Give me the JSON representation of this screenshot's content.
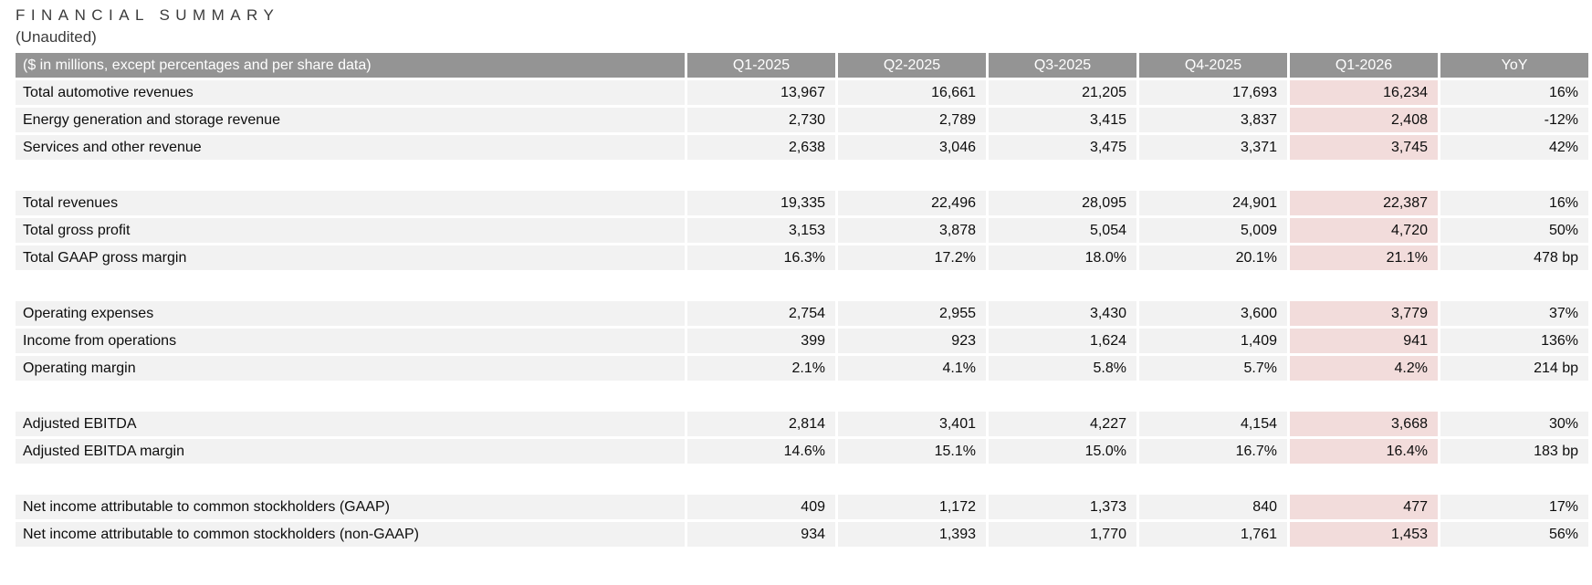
{
  "page": {
    "title": "FINANCIAL SUMMARY",
    "subtitle": "(Unaudited)"
  },
  "table": {
    "corner_label": "($ in millions, except percentages and per share data)",
    "columns": [
      "Q1-2025",
      "Q2-2025",
      "Q3-2025",
      "Q4-2025",
      "Q1-2026",
      "YoY"
    ],
    "highlight_column_index": 4,
    "highlight_column": "Q1-2026",
    "sections": [
      {
        "rows": [
          {
            "label": "Total automotive revenues",
            "values": [
              "13,967",
              "16,661",
              "21,205",
              "17,693",
              "16,234",
              "16%"
            ]
          },
          {
            "label": "Energy generation and storage revenue",
            "values": [
              "2,730",
              "2,789",
              "3,415",
              "3,837",
              "2,408",
              "-12%"
            ]
          },
          {
            "label": "Services and other revenue",
            "values": [
              "2,638",
              "3,046",
              "3,475",
              "3,371",
              "3,745",
              "42%"
            ]
          }
        ]
      },
      {
        "rows": [
          {
            "label": "Total revenues",
            "values": [
              "19,335",
              "22,496",
              "28,095",
              "24,901",
              "22,387",
              "16%"
            ]
          },
          {
            "label": "Total gross profit",
            "values": [
              "3,153",
              "3,878",
              "5,054",
              "5,009",
              "4,720",
              "50%"
            ]
          },
          {
            "label": "Total GAAP gross margin",
            "values": [
              "16.3%",
              "17.2%",
              "18.0%",
              "20.1%",
              "21.1%",
              "478 bp"
            ]
          }
        ]
      },
      {
        "rows": [
          {
            "label": "Operating expenses",
            "values": [
              "2,754",
              "2,955",
              "3,430",
              "3,600",
              "3,779",
              "37%"
            ]
          },
          {
            "label": "Income from operations",
            "values": [
              "399",
              "923",
              "1,624",
              "1,409",
              "941",
              "136%"
            ]
          },
          {
            "label": "Operating margin",
            "values": [
              "2.1%",
              "4.1%",
              "5.8%",
              "5.7%",
              "4.2%",
              "214 bp"
            ]
          }
        ]
      },
      {
        "rows": [
          {
            "label": "Adjusted EBITDA",
            "values": [
              "2,814",
              "3,401",
              "4,227",
              "4,154",
              "3,668",
              "30%"
            ]
          },
          {
            "label": "Adjusted EBITDA margin",
            "values": [
              "14.6%",
              "15.1%",
              "15.0%",
              "16.7%",
              "16.4%",
              "183 bp"
            ]
          }
        ]
      },
      {
        "rows": [
          {
            "label": "Net income attributable to common stockholders (GAAP)",
            "values": [
              "409",
              "1,172",
              "1,373",
              "840",
              "477",
              "17%"
            ]
          },
          {
            "label": "Net income attributable to common stockholders (non-GAAP)",
            "values": [
              "934",
              "1,393",
              "1,770",
              "1,761",
              "1,453",
              "56%"
            ]
          }
        ]
      }
    ]
  },
  "colors": {
    "header_bg": "#949494",
    "header_text": "#ffffff",
    "row_bg": "#f2f2f2",
    "highlight_bg": "#f2dcdb",
    "title_text": "#3b3b3b",
    "value_text": "#0d0d0d"
  }
}
